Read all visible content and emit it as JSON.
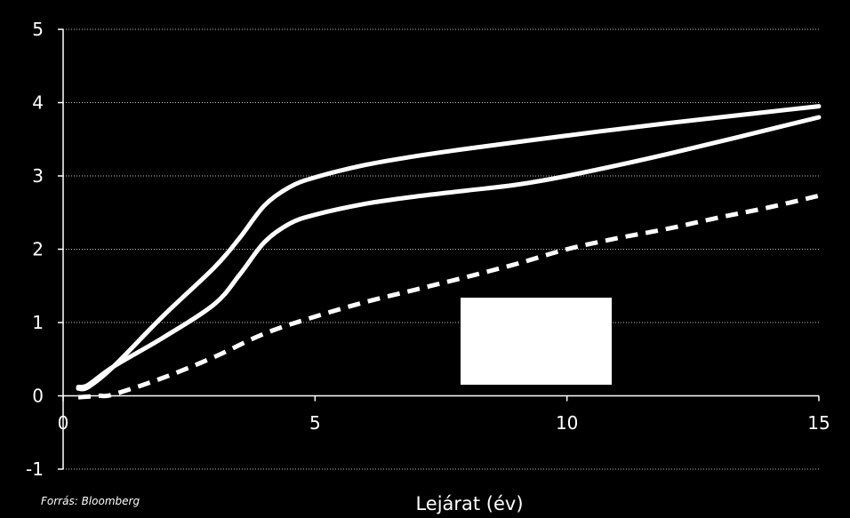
{
  "source_note": "Forrás: Bloomberg",
  "colors": {
    "background": "#000000",
    "foreground": "#ffffff",
    "grid": "#bfbfbf"
  },
  "chart_data": {
    "type": "line",
    "title": "",
    "xlabel": "Lejárat (év)",
    "ylabel": "",
    "xlim": [
      0,
      15
    ],
    "ylim": [
      -1,
      5
    ],
    "x_ticks": [
      0,
      5,
      10,
      15
    ],
    "x_tick_labels": [
      "0",
      "5",
      "10",
      "15"
    ],
    "y_ticks": [
      5,
      4,
      3,
      2,
      1,
      0,
      -1
    ],
    "y_tick_labels": [
      "5",
      "4",
      "3",
      "2",
      "1",
      "0",
      "-1"
    ],
    "grid": true,
    "legend": "none",
    "series": [
      {
        "style": "solid",
        "points": [
          [
            0.3,
            0.1
          ],
          [
            0.5,
            0.12
          ],
          [
            1,
            0.4
          ],
          [
            2,
            1.1
          ],
          [
            3,
            1.75
          ],
          [
            3.5,
            2.15
          ],
          [
            4,
            2.6
          ],
          [
            4.5,
            2.85
          ],
          [
            5,
            2.98
          ],
          [
            6,
            3.15
          ],
          [
            7,
            3.27
          ],
          [
            8,
            3.37
          ],
          [
            10,
            3.55
          ],
          [
            12,
            3.72
          ],
          [
            15,
            3.95
          ]
        ]
      },
      {
        "style": "solid",
        "points": [
          [
            0.3,
            0.12
          ],
          [
            0.5,
            0.15
          ],
          [
            1,
            0.4
          ],
          [
            2,
            0.8
          ],
          [
            3,
            1.25
          ],
          [
            3.5,
            1.65
          ],
          [
            4,
            2.1
          ],
          [
            4.5,
            2.35
          ],
          [
            5,
            2.47
          ],
          [
            6,
            2.62
          ],
          [
            7,
            2.72
          ],
          [
            8,
            2.8
          ],
          [
            9,
            2.88
          ],
          [
            10,
            3.0
          ],
          [
            12,
            3.3
          ],
          [
            15,
            3.8
          ]
        ]
      },
      {
        "style": "dashed",
        "points": [
          [
            0.3,
            -0.02
          ],
          [
            0.7,
            0.0
          ],
          [
            1,
            0.02
          ],
          [
            2,
            0.25
          ],
          [
            3,
            0.53
          ],
          [
            4,
            0.85
          ],
          [
            5,
            1.08
          ],
          [
            6,
            1.28
          ],
          [
            7,
            1.45
          ],
          [
            8,
            1.62
          ],
          [
            9,
            1.8
          ],
          [
            10,
            2.0
          ],
          [
            11,
            2.15
          ],
          [
            12,
            2.28
          ],
          [
            13,
            2.43
          ],
          [
            14,
            2.57
          ],
          [
            15,
            2.73
          ]
        ]
      }
    ]
  }
}
